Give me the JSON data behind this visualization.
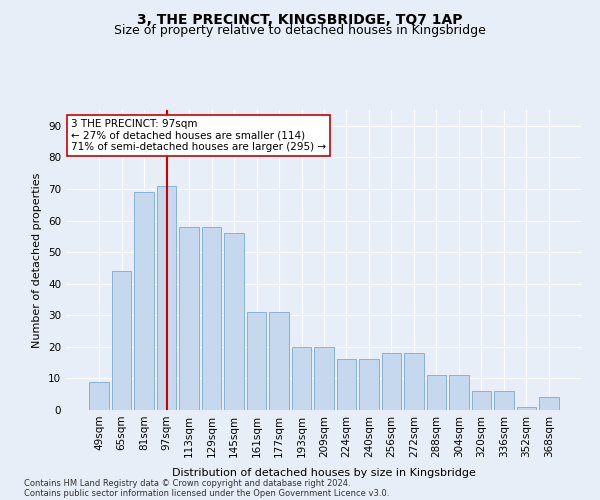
{
  "title": "3, THE PRECINCT, KINGSBRIDGE, TQ7 1AP",
  "subtitle": "Size of property relative to detached houses in Kingsbridge",
  "xlabel": "Distribution of detached houses by size in Kingsbridge",
  "ylabel": "Number of detached properties",
  "bar_heights": [
    9,
    44,
    69,
    71,
    58,
    58,
    56,
    31,
    31,
    20,
    20,
    16,
    16,
    18,
    18,
    11,
    11,
    6,
    6,
    1,
    4
  ],
  "categories": [
    "49sqm",
    "65sqm",
    "81sqm",
    "97sqm",
    "113sqm",
    "129sqm",
    "145sqm",
    "161sqm",
    "177sqm",
    "193sqm",
    "209sqm",
    "224sqm",
    "240sqm",
    "256sqm",
    "272sqm",
    "288sqm",
    "304sqm",
    "320sqm",
    "336sqm",
    "352sqm",
    "368sqm"
  ],
  "bar_color": "#c5d8ee",
  "bar_edge_color": "#7aabcf",
  "vline_index": 3,
  "vline_color": "#cc0000",
  "annotation_line1": "3 THE PRECINCT: 97sqm",
  "annotation_line2": "← 27% of detached houses are smaller (114)",
  "annotation_line3": "71% of semi-detached houses are larger (295) →",
  "annotation_box_facecolor": "#ffffff",
  "annotation_box_edgecolor": "#cc0000",
  "ylim": [
    0,
    95
  ],
  "yticks": [
    0,
    10,
    20,
    30,
    40,
    50,
    60,
    70,
    80,
    90
  ],
  "background_color": "#e8eef8",
  "plot_bg_color": "#e8eef8",
  "grid_color": "#ffffff",
  "footer_line1": "Contains HM Land Registry data © Crown copyright and database right 2024.",
  "footer_line2": "Contains public sector information licensed under the Open Government Licence v3.0.",
  "title_fontsize": 10,
  "subtitle_fontsize": 9,
  "axis_label_fontsize": 8,
  "tick_fontsize": 7.5,
  "annotation_fontsize": 7.5,
  "footer_fontsize": 6
}
